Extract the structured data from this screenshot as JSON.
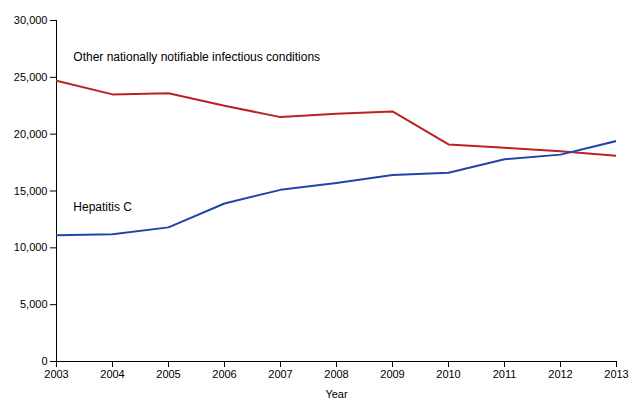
{
  "chart_data": {
    "type": "line",
    "xlabel": "Year",
    "x": [
      2003,
      2004,
      2005,
      2006,
      2007,
      2008,
      2009,
      2010,
      2011,
      2012,
      2013
    ],
    "series": [
      {
        "name": "Other nationally notifiable infectious conditions",
        "color": "#bb2222",
        "values": [
          24700,
          23500,
          23600,
          22500,
          21500,
          21800,
          22000,
          19100,
          18800,
          18500,
          18100
        ]
      },
      {
        "name": "Hepatitis C",
        "color": "#2244aa",
        "values": [
          11100,
          11200,
          11800,
          13900,
          15100,
          15700,
          16400,
          16600,
          17800,
          18200,
          19400
        ]
      }
    ],
    "annotations": [
      {
        "text": "Other nationally notifiable infectious conditions",
        "x": 2003.3,
        "y": 26400
      },
      {
        "text": "Hepatitis C",
        "x": 2003.3,
        "y": 13200
      }
    ],
    "xlim": [
      2003,
      2013
    ],
    "xticks": [
      2003,
      2004,
      2005,
      2006,
      2007,
      2008,
      2009,
      2010,
      2011,
      2012,
      2013
    ],
    "ylim": [
      0,
      30000
    ],
    "yticks": [
      0,
      {
        "value": 5000,
        "label": "5,000"
      },
      {
        "value": 10000,
        "label": "10,000"
      },
      {
        "value": 15000,
        "label": "15,000"
      },
      {
        "value": 20000,
        "label": "20,000"
      },
      {
        "value": 25000,
        "label": "25,000"
      },
      {
        "value": 30000,
        "label": "30,000"
      }
    ],
    "grid": false
  }
}
